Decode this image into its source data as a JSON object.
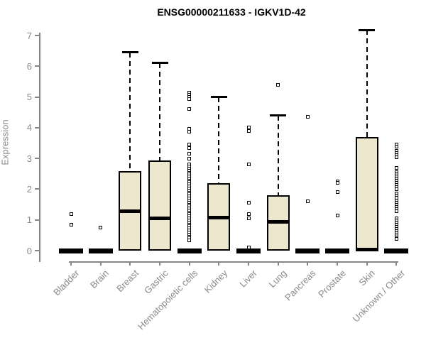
{
  "chart_data": {
    "type": "boxplot",
    "title": "ENSG00000211633 - IGKV1D-42",
    "ylabel": "Expression",
    "xlabel": "",
    "ylim": [
      0,
      7
    ],
    "yticks": [
      0,
      1,
      2,
      3,
      4,
      5,
      6,
      7
    ],
    "grid": false,
    "legend": "none",
    "box_fill_color": "#EDE7CE",
    "box_line_color": "#000000",
    "axis_color": "#878787",
    "axis_label_color": "#8a8a8a",
    "categories": [
      "Bladder",
      "Brain",
      "Breast",
      "Gastric",
      "Hematopoietic cells",
      "Kidney",
      "Liver",
      "Lung",
      "Pancreas",
      "Prostate",
      "Skin",
      "Unknown / Other"
    ],
    "boxes": [
      {
        "category": "Bladder",
        "whisker_low": 0,
        "q1": 0,
        "median": 0,
        "q3": 0,
        "whisker_high": 0,
        "outliers": [
          1.2,
          0.85
        ]
      },
      {
        "category": "Brain",
        "whisker_low": 0,
        "q1": 0,
        "median": 0,
        "q3": 0,
        "whisker_high": 0,
        "outliers": [
          0.76
        ]
      },
      {
        "category": "Breast",
        "whisker_low": 0,
        "q1": 0,
        "median": 1.28,
        "q3": 2.58,
        "whisker_high": 6.45,
        "outliers": []
      },
      {
        "category": "Gastric",
        "whisker_low": 0,
        "q1": 0,
        "median": 1.04,
        "q3": 2.93,
        "whisker_high": 6.1,
        "outliers": []
      },
      {
        "category": "Hematopoietic cells",
        "whisker_low": 0,
        "q1": 0,
        "median": 0,
        "q3": 0,
        "whisker_high": 0,
        "outliers": [
          5.15,
          5.08,
          5.0,
          4.93,
          4.6,
          3.97,
          3.86,
          3.45,
          3.33,
          3.15,
          3.0,
          2.8,
          2.74,
          2.67,
          2.61,
          2.54,
          2.48,
          2.41,
          2.35,
          2.28,
          2.22,
          2.15,
          2.09,
          2.02,
          1.96,
          1.89,
          1.83,
          1.76,
          1.7,
          1.63,
          1.57,
          1.5,
          1.44,
          1.37,
          1.31,
          1.24,
          1.18,
          1.11,
          1.05,
          0.98,
          0.92,
          0.85,
          0.79,
          0.72,
          0.66,
          0.59,
          0.53,
          0.46,
          0.4,
          0.33
        ]
      },
      {
        "category": "Kidney",
        "whisker_low": 0,
        "q1": 0,
        "median": 1.08,
        "q3": 2.2,
        "whisker_high": 5.0,
        "outliers": []
      },
      {
        "category": "Liver",
        "whisker_low": 0,
        "q1": 0,
        "median": 0,
        "q3": 0,
        "whisker_high": 0,
        "outliers": [
          4.0,
          3.9,
          2.8,
          1.55,
          1.2,
          1.05,
          0.1
        ]
      },
      {
        "category": "Lung",
        "whisker_low": 0,
        "q1": 0,
        "median": 0.93,
        "q3": 1.81,
        "whisker_high": 4.4,
        "outliers": [
          5.4
        ]
      },
      {
        "category": "Pancreas",
        "whisker_low": 0,
        "q1": 0,
        "median": 0,
        "q3": 0,
        "whisker_high": 0,
        "outliers": [
          4.35,
          1.6
        ]
      },
      {
        "category": "Prostate",
        "whisker_low": 0,
        "q1": 0,
        "median": 0,
        "q3": 0,
        "whisker_high": 0,
        "outliers": [
          2.25,
          2.2,
          1.9,
          1.15
        ]
      },
      {
        "category": "Skin",
        "whisker_low": 0,
        "q1": 0,
        "median": 0.03,
        "q3": 3.69,
        "whisker_high": 7.18,
        "outliers": []
      },
      {
        "category": "Unknown / Other",
        "whisker_low": 0,
        "q1": 0,
        "median": 0,
        "q3": 0,
        "whisker_high": 0,
        "outliers": [
          3.46,
          3.38,
          3.24,
          3.17,
          3.1,
          3.03,
          2.7,
          2.55,
          2.48,
          2.41,
          2.34,
          2.27,
          2.2,
          2.13,
          2.06,
          2.0,
          1.85,
          1.78,
          1.71,
          1.64,
          1.57,
          1.5,
          1.43,
          1.36,
          1.29,
          1.06,
          0.99,
          0.92,
          0.85,
          0.78,
          0.71,
          0.64,
          0.57,
          0.5,
          0.43,
          0.37
        ]
      }
    ]
  }
}
